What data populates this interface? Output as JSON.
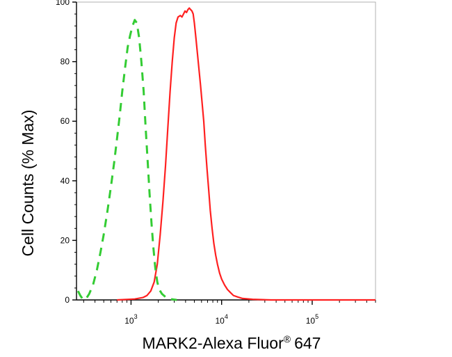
{
  "chart_data": {
    "type": "line",
    "title": "",
    "xlabel": "MARK2-Alexa Fluor",
    "xlabel_sup": "®",
    "xlabel_suffix": "647",
    "ylabel": "Cell Counts (% Max)",
    "xscale": "log",
    "xlim": [
      250,
      500000
    ],
    "ylim": [
      0,
      100
    ],
    "grid": false,
    "legend": "none",
    "y_ticks": [
      0,
      20,
      40,
      60,
      80,
      100
    ],
    "x_ticks": [
      {
        "value": 1000,
        "base": "10",
        "exp": "3"
      },
      {
        "value": 10000,
        "base": "10",
        "exp": "4"
      },
      {
        "value": 100000,
        "base": "10",
        "exp": "5"
      }
    ],
    "series": [
      {
        "color": "#ff2020",
        "style": "solid",
        "points": [
          [
            700,
            0
          ],
          [
            1100,
            0.3
          ],
          [
            1350,
            0.8
          ],
          [
            1500,
            1.5
          ],
          [
            1650,
            3
          ],
          [
            1800,
            6
          ],
          [
            1950,
            12
          ],
          [
            2100,
            22
          ],
          [
            2250,
            33
          ],
          [
            2400,
            45
          ],
          [
            2550,
            58
          ],
          [
            2700,
            70
          ],
          [
            2850,
            80
          ],
          [
            3000,
            88
          ],
          [
            3150,
            93
          ],
          [
            3300,
            95
          ],
          [
            3500,
            95.5
          ],
          [
            3650,
            95
          ],
          [
            3800,
            96
          ],
          [
            3950,
            97
          ],
          [
            4100,
            96.5
          ],
          [
            4250,
            97.5
          ],
          [
            4400,
            98
          ],
          [
            4550,
            97.5
          ],
          [
            4700,
            97
          ],
          [
            4850,
            96
          ],
          [
            5000,
            93
          ],
          [
            5200,
            88
          ],
          [
            5400,
            83
          ],
          [
            5600,
            78
          ],
          [
            5850,
            72
          ],
          [
            6100,
            66
          ],
          [
            6350,
            60
          ],
          [
            6600,
            52
          ],
          [
            6900,
            44
          ],
          [
            7200,
            37
          ],
          [
            7500,
            30
          ],
          [
            7850,
            24
          ],
          [
            8200,
            19
          ],
          [
            8600,
            15
          ],
          [
            9000,
            12
          ],
          [
            9500,
            9
          ],
          [
            10000,
            7
          ],
          [
            10800,
            5
          ],
          [
            11600,
            3.5
          ],
          [
            12500,
            2.5
          ],
          [
            13500,
            1.5
          ],
          [
            15000,
            1
          ],
          [
            17000,
            0.5
          ],
          [
            22000,
            0.2
          ],
          [
            35000,
            0
          ],
          [
            500000,
            0
          ]
        ]
      },
      {
        "color": "#33cc33",
        "style": "dashed",
        "points": [
          [
            260,
            3
          ],
          [
            275,
            1.5
          ],
          [
            290,
            0.5
          ],
          [
            305,
            0
          ],
          [
            320,
            0.5
          ],
          [
            345,
            2
          ],
          [
            380,
            5
          ],
          [
            420,
            10
          ],
          [
            460,
            16
          ],
          [
            500,
            22
          ],
          [
            550,
            30
          ],
          [
            600,
            38
          ],
          [
            650,
            46
          ],
          [
            700,
            54
          ],
          [
            750,
            62
          ],
          [
            800,
            70
          ],
          [
            860,
            78
          ],
          [
            920,
            85
          ],
          [
            980,
            89
          ],
          [
            1040,
            92
          ],
          [
            1100,
            94
          ],
          [
            1160,
            93
          ],
          [
            1230,
            88
          ],
          [
            1300,
            80
          ],
          [
            1380,
            70
          ],
          [
            1450,
            58
          ],
          [
            1530,
            46
          ],
          [
            1600,
            36
          ],
          [
            1680,
            26
          ],
          [
            1760,
            18
          ],
          [
            1850,
            11
          ],
          [
            1950,
            6
          ],
          [
            2050,
            3.5
          ],
          [
            2200,
            2
          ],
          [
            2400,
            1
          ],
          [
            2700,
            0.3
          ],
          [
            3200,
            0
          ]
        ]
      }
    ]
  }
}
